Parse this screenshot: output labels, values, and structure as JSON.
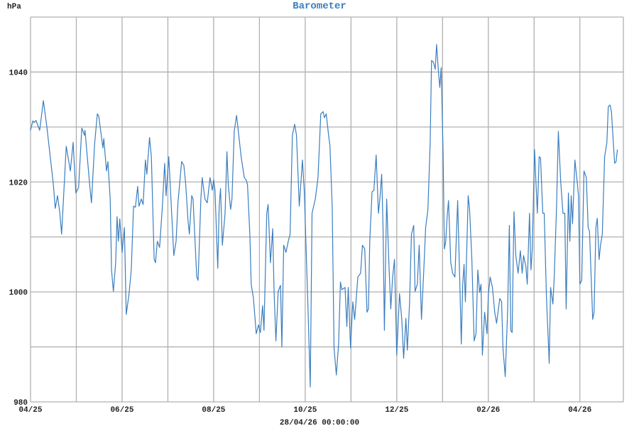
{
  "chart_data": {
    "type": "line",
    "title": "Barometer",
    "ylabel": "hPa",
    "xlabel": "28/04/26 00:00:00",
    "xlim": [
      0,
      12.95
    ],
    "ylim": [
      980,
      1050
    ],
    "grid": true,
    "x_unit": "months since 04/25",
    "x_ticks": [
      {
        "value": 0,
        "label": "04/25"
      },
      {
        "value": 2,
        "label": "06/25"
      },
      {
        "value": 4,
        "label": "08/25"
      },
      {
        "value": 6,
        "label": "10/25"
      },
      {
        "value": 8,
        "label": "12/25"
      },
      {
        "value": 10,
        "label": "02/26"
      },
      {
        "value": 12,
        "label": "04/26"
      }
    ],
    "x_minor_grid_step": 1,
    "y_ticks": [
      {
        "value": 980,
        "label": "980"
      },
      {
        "value": 1000,
        "label": "1000"
      },
      {
        "value": 1020,
        "label": "1020"
      },
      {
        "value": 1040,
        "label": "1040"
      }
    ],
    "y_minor_grid_step": 10,
    "color": "#3a7ebf",
    "series": [
      {
        "name": "Barometer",
        "points": [
          [
            0,
            1029.4
          ],
          [
            0.05,
            1031.1
          ],
          [
            0.08,
            1030.8
          ],
          [
            0.12,
            1031.2
          ],
          [
            0.2,
            1029.4
          ],
          [
            0.28,
            1034.8
          ],
          [
            0.36,
            1029.8
          ],
          [
            0.5,
            1019.5
          ],
          [
            0.54,
            1015.2
          ],
          [
            0.59,
            1017.5
          ],
          [
            0.64,
            1014.3
          ],
          [
            0.68,
            1010.5
          ],
          [
            0.78,
            1026.5
          ],
          [
            0.87,
            1022
          ],
          [
            0.93,
            1027.2
          ],
          [
            0.99,
            1018
          ],
          [
            1.05,
            1019
          ],
          [
            1.12,
            1029.8
          ],
          [
            1.18,
            1028.5
          ],
          [
            1.19,
            1029.4
          ],
          [
            1.3,
            1018.8
          ],
          [
            1.33,
            1016.2
          ],
          [
            1.4,
            1027
          ],
          [
            1.46,
            1032.4
          ],
          [
            1.49,
            1032
          ],
          [
            1.58,
            1026.2
          ],
          [
            1.6,
            1027.9
          ],
          [
            1.66,
            1022
          ],
          [
            1.69,
            1023.7
          ],
          [
            1.74,
            1016.9
          ],
          [
            1.77,
            1004
          ],
          [
            1.81,
            1000.1
          ],
          [
            1.86,
            1005.3
          ],
          [
            1.89,
            1013.7
          ],
          [
            1.92,
            1009.2
          ],
          [
            1.95,
            1013.3
          ],
          [
            2.0,
            1007.2
          ],
          [
            2.05,
            1011.7
          ],
          [
            2.09,
            995.9
          ],
          [
            2.15,
            999.5
          ],
          [
            2.2,
            1004
          ],
          [
            2.25,
            1015.6
          ],
          [
            2.29,
            1015.4
          ],
          [
            2.34,
            1019.2
          ],
          [
            2.37,
            1015.6
          ],
          [
            2.42,
            1016.9
          ],
          [
            2.46,
            1015.9
          ],
          [
            2.51,
            1024
          ],
          [
            2.54,
            1021.4
          ],
          [
            2.6,
            1028.1
          ],
          [
            2.64,
            1024.6
          ],
          [
            2.7,
            1006
          ],
          [
            2.73,
            1005.3
          ],
          [
            2.77,
            1009.2
          ],
          [
            2.82,
            1008.1
          ],
          [
            2.88,
            1015.6
          ],
          [
            2.93,
            1023.4
          ],
          [
            2.96,
            1017.5
          ],
          [
            3.02,
            1024.6
          ],
          [
            3.07,
            1016.5
          ],
          [
            3.13,
            1006.6
          ],
          [
            3.18,
            1009.2
          ],
          [
            3.22,
            1016.2
          ],
          [
            3.3,
            1023.7
          ],
          [
            3.35,
            1023
          ],
          [
            3.39,
            1019.5
          ],
          [
            3.44,
            1013
          ],
          [
            3.47,
            1010.5
          ],
          [
            3.52,
            1017.5
          ],
          [
            3.55,
            1016.9
          ],
          [
            3.63,
            1002.7
          ],
          [
            3.66,
            1002.1
          ],
          [
            3.72,
            1016.9
          ],
          [
            3.75,
            1020.8
          ],
          [
            3.81,
            1016.9
          ],
          [
            3.86,
            1016.2
          ],
          [
            3.92,
            1020.8
          ],
          [
            3.97,
            1018.5
          ],
          [
            4.0,
            1020.4
          ],
          [
            4.03,
            1018.5
          ],
          [
            4.09,
            1004.3
          ],
          [
            4.12,
            1015.6
          ],
          [
            4.15,
            1018.8
          ],
          [
            4.19,
            1008.5
          ],
          [
            4.25,
            1014.3
          ],
          [
            4.29,
            1025.5
          ],
          [
            4.32,
            1019.5
          ],
          [
            4.37,
            1015
          ],
          [
            4.4,
            1016.9
          ],
          [
            4.45,
            1029.2
          ],
          [
            4.5,
            1032.1
          ],
          [
            4.54,
            1029.2
          ],
          [
            4.6,
            1024.6
          ],
          [
            4.67,
            1020.8
          ],
          [
            4.71,
            1020.4
          ],
          [
            4.74,
            1019.5
          ],
          [
            4.79,
            1010.5
          ],
          [
            4.82,
            1001.4
          ],
          [
            4.87,
            998.8
          ],
          [
            4.93,
            992.4
          ],
          [
            4.98,
            994
          ],
          [
            5.02,
            992.6
          ],
          [
            5.07,
            997.5
          ],
          [
            5.1,
            993
          ],
          [
            5.16,
            1014.3
          ],
          [
            5.19,
            1015.9
          ],
          [
            5.24,
            1005.3
          ],
          [
            5.29,
            1011.5
          ],
          [
            5.32,
            1000.1
          ],
          [
            5.36,
            991.1
          ],
          [
            5.41,
            1000.1
          ],
          [
            5.46,
            1001.2
          ],
          [
            5.49,
            990
          ],
          [
            5.53,
            1008.5
          ],
          [
            5.58,
            1007.2
          ],
          [
            5.63,
            1009.2
          ],
          [
            5.67,
            1010.5
          ],
          [
            5.72,
            1028.5
          ],
          [
            5.77,
            1030.5
          ],
          [
            5.81,
            1028.5
          ],
          [
            5.87,
            1015.6
          ],
          [
            5.94,
            1024
          ],
          [
            5.98,
            1018.2
          ],
          [
            6.06,
            997.5
          ],
          [
            6.11,
            982.7
          ],
          [
            6.15,
            1014.3
          ],
          [
            6.22,
            1016.9
          ],
          [
            6.28,
            1020.8
          ],
          [
            6.34,
            1032.4
          ],
          [
            6.39,
            1032.8
          ],
          [
            6.42,
            1031.7
          ],
          [
            6.46,
            1032.4
          ],
          [
            6.51,
            1028.5
          ],
          [
            6.54,
            1026.6
          ],
          [
            6.59,
            1015.6
          ],
          [
            6.63,
            989.8
          ],
          [
            6.68,
            984.9
          ],
          [
            6.73,
            990.5
          ],
          [
            6.77,
            1001.8
          ],
          [
            6.8,
            1000.4
          ],
          [
            6.87,
            1000.8
          ],
          [
            6.91,
            993.7
          ],
          [
            6.94,
            1000.8
          ],
          [
            6.99,
            989.8
          ],
          [
            7.04,
            998.2
          ],
          [
            7.08,
            995
          ],
          [
            7.15,
            1002.7
          ],
          [
            7.21,
            1003.4
          ],
          [
            7.25,
            1008.5
          ],
          [
            7.3,
            1007.8
          ],
          [
            7.35,
            996.3
          ],
          [
            7.38,
            996.9
          ],
          [
            7.41,
            1009.2
          ],
          [
            7.46,
            1018.2
          ],
          [
            7.5,
            1018.5
          ],
          [
            7.55,
            1024.9
          ],
          [
            7.6,
            1014.3
          ],
          [
            7.63,
            1016.9
          ],
          [
            7.67,
            1021.4
          ],
          [
            7.7,
            1011.7
          ],
          [
            7.73,
            993
          ],
          [
            7.78,
            1016.9
          ],
          [
            7.83,
            1004.6
          ],
          [
            7.87,
            996.9
          ],
          [
            7.91,
            1002.7
          ],
          [
            7.95,
            1005.9
          ],
          [
            8.0,
            988.5
          ],
          [
            8.06,
            999.7
          ],
          [
            8.11,
            995
          ],
          [
            8.15,
            987.9
          ],
          [
            8.2,
            995.2
          ],
          [
            8.23,
            989.4
          ],
          [
            8.28,
            998.2
          ],
          [
            8.32,
            1010.5
          ],
          [
            8.37,
            1012.1
          ],
          [
            8.4,
            1000.1
          ],
          [
            8.45,
            1001.4
          ],
          [
            8.49,
            1008.5
          ],
          [
            8.54,
            995
          ],
          [
            8.59,
            1004
          ],
          [
            8.63,
            1011.7
          ],
          [
            8.68,
            1015
          ],
          [
            8.73,
            1027.2
          ],
          [
            8.76,
            1042.1
          ],
          [
            8.8,
            1041.8
          ],
          [
            8.84,
            1040.5
          ],
          [
            8.87,
            1045
          ],
          [
            8.91,
            1040.1
          ],
          [
            8.94,
            1037.2
          ],
          [
            8.97,
            1040.8
          ],
          [
            9.01,
            1025.9
          ],
          [
            9.04,
            1007.8
          ],
          [
            9.07,
            1009.2
          ],
          [
            9.1,
            1013.7
          ],
          [
            9.13,
            1016.6
          ],
          [
            9.18,
            1005.3
          ],
          [
            9.22,
            1003.4
          ],
          [
            9.27,
            1002.7
          ],
          [
            9.33,
            1016.6
          ],
          [
            9.38,
            1000.8
          ],
          [
            9.41,
            990.5
          ],
          [
            9.44,
            1001.4
          ],
          [
            9.47,
            1005
          ],
          [
            9.5,
            998.2
          ],
          [
            9.56,
            1017.5
          ],
          [
            9.59,
            1015
          ],
          [
            9.64,
            1005.9
          ],
          [
            9.69,
            991.1
          ],
          [
            9.73,
            992.4
          ],
          [
            9.77,
            1004
          ],
          [
            9.81,
            999.9
          ],
          [
            9.84,
            1001.4
          ],
          [
            9.87,
            988.5
          ],
          [
            9.92,
            996.3
          ],
          [
            9.97,
            992.4
          ],
          [
            10.0,
            999.5
          ],
          [
            10.04,
            1002.7
          ],
          [
            10.09,
            1000.8
          ],
          [
            10.14,
            996.3
          ],
          [
            10.18,
            994.3
          ],
          [
            10.25,
            998.8
          ],
          [
            10.29,
            998.2
          ],
          [
            10.32,
            989.8
          ],
          [
            10.37,
            984.6
          ],
          [
            10.42,
            996.3
          ],
          [
            10.46,
            1012.1
          ],
          [
            10.49,
            993
          ],
          [
            10.52,
            992.6
          ],
          [
            10.56,
            1014.6
          ],
          [
            10.6,
            1006.6
          ],
          [
            10.65,
            1003.4
          ],
          [
            10.7,
            1007.5
          ],
          [
            10.74,
            1003.4
          ],
          [
            10.77,
            1006.6
          ],
          [
            10.82,
            1004.6
          ],
          [
            10.85,
            1001.4
          ],
          [
            10.9,
            1014.3
          ],
          [
            10.93,
            1004
          ],
          [
            10.96,
            1007.8
          ],
          [
            11.01,
            1025.9
          ],
          [
            11.04,
            1020.1
          ],
          [
            11.07,
            1014.3
          ],
          [
            11.11,
            1024.6
          ],
          [
            11.14,
            1024.4
          ],
          [
            11.19,
            1014.3
          ],
          [
            11.22,
            1014.3
          ],
          [
            11.27,
            998.8
          ],
          [
            11.32,
            989.2
          ],
          [
            11.33,
            987
          ],
          [
            11.36,
            1000.8
          ],
          [
            11.41,
            997.8
          ],
          [
            11.44,
            1002.7
          ],
          [
            11.49,
            1015.6
          ],
          [
            11.53,
            1029.2
          ],
          [
            11.58,
            1020.1
          ],
          [
            11.63,
            1014.3
          ],
          [
            11.67,
            1014.3
          ],
          [
            11.7,
            996.9
          ],
          [
            11.75,
            1018
          ],
          [
            11.78,
            1009.2
          ],
          [
            11.81,
            1017.5
          ],
          [
            11.84,
            1012.4
          ],
          [
            11.89,
            1024
          ],
          [
            11.94,
            1020.1
          ],
          [
            11.97,
            1017.5
          ],
          [
            12.0,
            1001.4
          ],
          [
            12.04,
            1002.1
          ],
          [
            12.09,
            1022
          ],
          [
            12.14,
            1020.8
          ],
          [
            12.18,
            1011.7
          ],
          [
            12.21,
            1011
          ],
          [
            12.28,
            995
          ],
          [
            12.31,
            996.3
          ],
          [
            12.35,
            1011.7
          ],
          [
            12.38,
            1013.4
          ],
          [
            12.42,
            1005.9
          ],
          [
            12.45,
            1008.5
          ],
          [
            12.49,
            1010.5
          ],
          [
            12.54,
            1024.6
          ],
          [
            12.59,
            1027.2
          ],
          [
            12.62,
            1033.7
          ],
          [
            12.66,
            1034
          ],
          [
            12.69,
            1032.8
          ],
          [
            12.73,
            1027.2
          ],
          [
            12.76,
            1023.4
          ],
          [
            12.79,
            1023.7
          ],
          [
            12.82,
            1025.9
          ]
        ]
      }
    ]
  }
}
